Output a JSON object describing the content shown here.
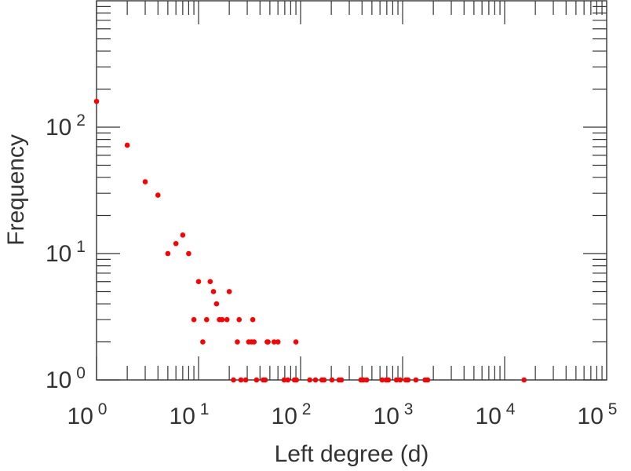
{
  "chart_data": {
    "type": "scatter",
    "title": "",
    "xlabel": "Left degree (d)",
    "ylabel": "Frequency",
    "xscale": "log",
    "yscale": "log",
    "xlim": [
      1,
      100000
    ],
    "ylim": [
      1,
      1000
    ],
    "grid": false,
    "marker_color": "#ff0000",
    "x_ticks": [
      {
        "base": "10",
        "exp": "0"
      },
      {
        "base": "10",
        "exp": "1"
      },
      {
        "base": "10",
        "exp": "2"
      },
      {
        "base": "10",
        "exp": "3"
      },
      {
        "base": "10",
        "exp": "4"
      },
      {
        "base": "10",
        "exp": "5"
      }
    ],
    "y_ticks": [
      {
        "base": "10",
        "exp": "0"
      },
      {
        "base": "10",
        "exp": "1"
      },
      {
        "base": "10",
        "exp": "2"
      }
    ],
    "points": [
      [
        1,
        160
      ],
      [
        2,
        72
      ],
      [
        3,
        37
      ],
      [
        4,
        29
      ],
      [
        5,
        10
      ],
      [
        6,
        12
      ],
      [
        7,
        14
      ],
      [
        8,
        10
      ],
      [
        9,
        3
      ],
      [
        10,
        6
      ],
      [
        11,
        2
      ],
      [
        12,
        3
      ],
      [
        13,
        6
      ],
      [
        14,
        5
      ],
      [
        15,
        4
      ],
      [
        16,
        3
      ],
      [
        17,
        3
      ],
      [
        19,
        3
      ],
      [
        20,
        5
      ],
      [
        24,
        2
      ],
      [
        25,
        3
      ],
      [
        31,
        2
      ],
      [
        33,
        2
      ],
      [
        34,
        3
      ],
      [
        35,
        2
      ],
      [
        47,
        2
      ],
      [
        48,
        2
      ],
      [
        55,
        2
      ],
      [
        60,
        2
      ],
      [
        90,
        2
      ],
      [
        22,
        1
      ],
      [
        26,
        1
      ],
      [
        29,
        1
      ],
      [
        37,
        1
      ],
      [
        43,
        1
      ],
      [
        45,
        1
      ],
      [
        69,
        1
      ],
      [
        75,
        1
      ],
      [
        87,
        1
      ],
      [
        91,
        1
      ],
      [
        123,
        1
      ],
      [
        140,
        1
      ],
      [
        162,
        1
      ],
      [
        170,
        1
      ],
      [
        203,
        1
      ],
      [
        238,
        1
      ],
      [
        251,
        1
      ],
      [
        390,
        1
      ],
      [
        412,
        1
      ],
      [
        443,
        1
      ],
      [
        630,
        1
      ],
      [
        690,
        1
      ],
      [
        725,
        1
      ],
      [
        870,
        1
      ],
      [
        945,
        1
      ],
      [
        1075,
        1
      ],
      [
        1130,
        1
      ],
      [
        1350,
        1
      ],
      [
        1660,
        1
      ],
      [
        1760,
        1
      ],
      [
        15500,
        1
      ]
    ]
  }
}
